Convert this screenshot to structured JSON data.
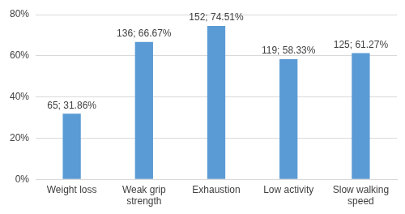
{
  "chart_data": {
    "type": "bar",
    "categories": [
      "Weight loss",
      "Weak grip strength",
      "Exhaustion",
      "Low activity",
      "Slow walking speed"
    ],
    "values": [
      31.86,
      66.67,
      74.51,
      58.33,
      61.27
    ],
    "value_labels": [
      "65; 31.86%",
      "136; 66.67%",
      "152; 74.51%",
      "119; 58.33%",
      "125; 61.27%"
    ],
    "data_labels": true,
    "color": "#5b9bd5",
    "ylim": [
      0,
      80
    ],
    "yticks": [
      {
        "value": 0,
        "label": "0%"
      },
      {
        "value": 20,
        "label": "20%"
      },
      {
        "value": 40,
        "label": "40%"
      },
      {
        "value": 60,
        "label": "60%"
      },
      {
        "value": 80,
        "label": "80%"
      }
    ],
    "grid": true
  }
}
